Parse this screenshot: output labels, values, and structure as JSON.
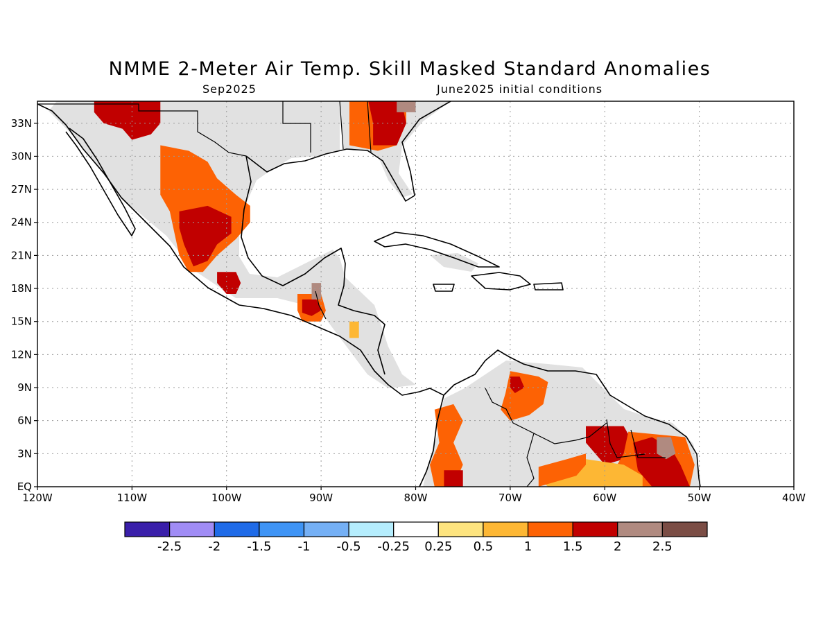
{
  "title": "NMME 2-Meter Air Temp. Skill Masked Standard Anomalies",
  "target_month": "Sep2025",
  "initial_conditions": "June2025 initial conditions",
  "map": {
    "lon_range": [
      -120,
      -40
    ],
    "lat_range": [
      0,
      35
    ],
    "x_ticks": [
      {
        "lon": -120,
        "label": "120W"
      },
      {
        "lon": -110,
        "label": "110W"
      },
      {
        "lon": -100,
        "label": "100W"
      },
      {
        "lon": -90,
        "label": "90W"
      },
      {
        "lon": -80,
        "label": "80W"
      },
      {
        "lon": -70,
        "label": "70W"
      },
      {
        "lon": -60,
        "label": "60W"
      },
      {
        "lon": -50,
        "label": "50W"
      },
      {
        "lon": -40,
        "label": "40W"
      }
    ],
    "y_ticks": [
      {
        "lat": 0,
        "label": "EQ"
      },
      {
        "lat": 3,
        "label": "3N"
      },
      {
        "lat": 6,
        "label": "6N"
      },
      {
        "lat": 9,
        "label": "9N"
      },
      {
        "lat": 12,
        "label": "12N"
      },
      {
        "lat": 15,
        "label": "15N"
      },
      {
        "lat": 18,
        "label": "18N"
      },
      {
        "lat": 21,
        "label": "21N"
      },
      {
        "lat": 24,
        "label": "24N"
      },
      {
        "lat": 27,
        "label": "27N"
      },
      {
        "lat": 30,
        "label": "30N"
      },
      {
        "lat": 33,
        "label": "33N"
      }
    ],
    "gridlines": true,
    "masked_color": "#e1e1e1",
    "anomaly_regions": [
      {
        "name": "northwest-mexico",
        "value": 1.75,
        "points": [
          [
            -114,
            35
          ],
          [
            -107,
            35
          ],
          [
            -107,
            33
          ],
          [
            -108,
            32
          ],
          [
            -110,
            31.5
          ],
          [
            -111,
            32.5
          ],
          [
            -113,
            33
          ],
          [
            -114,
            34
          ]
        ]
      },
      {
        "name": "central-mexico-plateau",
        "value": 1.25,
        "points": [
          [
            -107,
            31
          ],
          [
            -104,
            30.5
          ],
          [
            -102,
            29.5
          ],
          [
            -101,
            28
          ],
          [
            -99,
            26.5
          ],
          [
            -97.5,
            25.5
          ],
          [
            -97.5,
            24
          ],
          [
            -99,
            22.5
          ],
          [
            -101,
            21
          ],
          [
            -102.5,
            19.5
          ],
          [
            -104,
            19.5
          ],
          [
            -105,
            21
          ],
          [
            -105.5,
            23
          ],
          [
            -106,
            25
          ],
          [
            -107,
            26.5
          ],
          [
            -107,
            29
          ]
        ]
      },
      {
        "name": "central-mexico-core",
        "value": 1.75,
        "points": [
          [
            -105,
            25
          ],
          [
            -102,
            25.5
          ],
          [
            -99.5,
            24.5
          ],
          [
            -99.5,
            23
          ],
          [
            -101,
            22
          ],
          [
            -102,
            20.5
          ],
          [
            -103.5,
            20
          ],
          [
            -104.5,
            22
          ],
          [
            -105,
            23.5
          ]
        ]
      },
      {
        "name": "south-mexico",
        "value": 1.75,
        "points": [
          [
            -101,
            19.5
          ],
          [
            -99,
            19.5
          ],
          [
            -98.5,
            18.5
          ],
          [
            -99,
            17.5
          ],
          [
            -100,
            17.5
          ],
          [
            -101,
            18.5
          ]
        ]
      },
      {
        "name": "guatemala",
        "value": 1.25,
        "points": [
          [
            -92.5,
            17.5
          ],
          [
            -90,
            17.5
          ],
          [
            -89.5,
            16
          ],
          [
            -90,
            15
          ],
          [
            -92,
            15
          ],
          [
            -92.5,
            16
          ]
        ]
      },
      {
        "name": "guatemala-core",
        "value": 1.75,
        "points": [
          [
            -92,
            17
          ],
          [
            -90.5,
            17
          ],
          [
            -90,
            16
          ],
          [
            -91,
            15.5
          ],
          [
            -92,
            15.8
          ]
        ]
      },
      {
        "name": "belize",
        "value": 2.25,
        "points": [
          [
            -91,
            18.5
          ],
          [
            -90,
            18.5
          ],
          [
            -90,
            17
          ],
          [
            -91,
            17
          ]
        ]
      },
      {
        "name": "honduras",
        "value": 0.75,
        "points": [
          [
            -87,
            15
          ],
          [
            -86,
            15
          ],
          [
            -86,
            13.5
          ],
          [
            -87,
            13.5
          ]
        ]
      },
      {
        "name": "georgia-carolina",
        "value": 1.25,
        "points": [
          [
            -87,
            35
          ],
          [
            -81,
            35
          ],
          [
            -81,
            33
          ],
          [
            -82,
            31
          ],
          [
            -84,
            30.5
          ],
          [
            -87,
            31
          ]
        ]
      },
      {
        "name": "georgia-core",
        "value": 1.75,
        "points": [
          [
            -85,
            35
          ],
          [
            -81.5,
            35
          ],
          [
            -81,
            33
          ],
          [
            -82,
            31
          ],
          [
            -84.5,
            31
          ],
          [
            -84.5,
            33
          ]
        ]
      },
      {
        "name": "carolina-coast",
        "value": 2.25,
        "points": [
          [
            -82,
            35
          ],
          [
            -80,
            35
          ],
          [
            -80,
            34
          ],
          [
            -82,
            34
          ]
        ]
      },
      {
        "name": "colombia",
        "value": 1.25,
        "points": [
          [
            -78,
            7
          ],
          [
            -76,
            7.5
          ],
          [
            -75,
            6
          ],
          [
            -76,
            4
          ],
          [
            -75,
            2
          ],
          [
            -76,
            0
          ],
          [
            -78,
            0
          ],
          [
            -78.5,
            2
          ],
          [
            -77.5,
            4
          ]
        ]
      },
      {
        "name": "colombia-south",
        "value": 1.75,
        "points": [
          [
            -77,
            1.5
          ],
          [
            -75,
            1.5
          ],
          [
            -75,
            0
          ],
          [
            -77,
            0
          ]
        ]
      },
      {
        "name": "venezuela-north",
        "value": 1.25,
        "points": [
          [
            -70,
            10.5
          ],
          [
            -67,
            10
          ],
          [
            -66,
            9.5
          ],
          [
            -66.5,
            7.5
          ],
          [
            -68,
            6.5
          ],
          [
            -70,
            6
          ],
          [
            -71,
            7
          ],
          [
            -70.5,
            8.5
          ]
        ]
      },
      {
        "name": "venezuela-core",
        "value": 1.75,
        "points": [
          [
            -70,
            10
          ],
          [
            -69,
            10
          ],
          [
            -68.5,
            9
          ],
          [
            -69.5,
            8.5
          ],
          [
            -70,
            9
          ]
        ]
      },
      {
        "name": "guyana",
        "value": 1.75,
        "points": [
          [
            -62,
            5.5
          ],
          [
            -58,
            5.5
          ],
          [
            -57,
            4
          ],
          [
            -58,
            2.5
          ],
          [
            -60,
            2
          ],
          [
            -61,
            3
          ],
          [
            -62,
            4
          ]
        ]
      },
      {
        "name": "suriname-fguiana",
        "value": 1.25,
        "points": [
          [
            -57.5,
            5
          ],
          [
            -51.5,
            4.5
          ],
          [
            -50.5,
            2
          ],
          [
            -51,
            0
          ],
          [
            -58,
            0
          ],
          [
            -59,
            1.5
          ],
          [
            -58,
            3
          ]
        ]
      },
      {
        "name": "suriname-core",
        "value": 1.75,
        "points": [
          [
            -57,
            4
          ],
          [
            -55,
            4.5
          ],
          [
            -53,
            3.5
          ],
          [
            -52,
            2
          ],
          [
            -51,
            0
          ],
          [
            -55,
            0
          ],
          [
            -56.5,
            1.5
          ]
        ]
      },
      {
        "name": "french-guiana",
        "value": 2.25,
        "points": [
          [
            -54.5,
            4.5
          ],
          [
            -53,
            4.5
          ],
          [
            -52.5,
            3
          ],
          [
            -53.5,
            2.5
          ],
          [
            -54.5,
            3
          ]
        ]
      },
      {
        "name": "brazil-north",
        "value": 0.75,
        "points": [
          [
            -66,
            2
          ],
          [
            -62,
            2.5
          ],
          [
            -58,
            2
          ],
          [
            -56,
            1
          ],
          [
            -56,
            0
          ],
          [
            -66,
            0
          ],
          [
            -67,
            0.8
          ]
        ]
      },
      {
        "name": "brazil-amazonas",
        "value": 1.25,
        "points": [
          [
            -67,
            1.8
          ],
          [
            -64,
            2.5
          ],
          [
            -62,
            3
          ],
          [
            -62,
            2
          ],
          [
            -63,
            1
          ],
          [
            -67,
            0
          ]
        ]
      }
    ]
  },
  "colorbar": {
    "ticks": [
      "-2.5",
      "-2",
      "-1.5",
      "-1",
      "-0.5",
      "-0.25",
      "0.25",
      "0.5",
      "1",
      "1.5",
      "2",
      "2.5"
    ],
    "colors": [
      "#3a1faa",
      "#a08cf5",
      "#1f6be8",
      "#3f94f5",
      "#75b0f5",
      "#b5edfd",
      "#ffffff",
      "#fde47f",
      "#fdb734",
      "#fd6204",
      "#c10000",
      "#b08a80",
      "#7b4d45"
    ],
    "bins": [
      -3.0,
      -2.5,
      -2.0,
      -1.5,
      -1.0,
      -0.5,
      -0.25,
      0.25,
      0.5,
      1.0,
      1.5,
      2.0,
      2.5,
      3.0
    ]
  }
}
